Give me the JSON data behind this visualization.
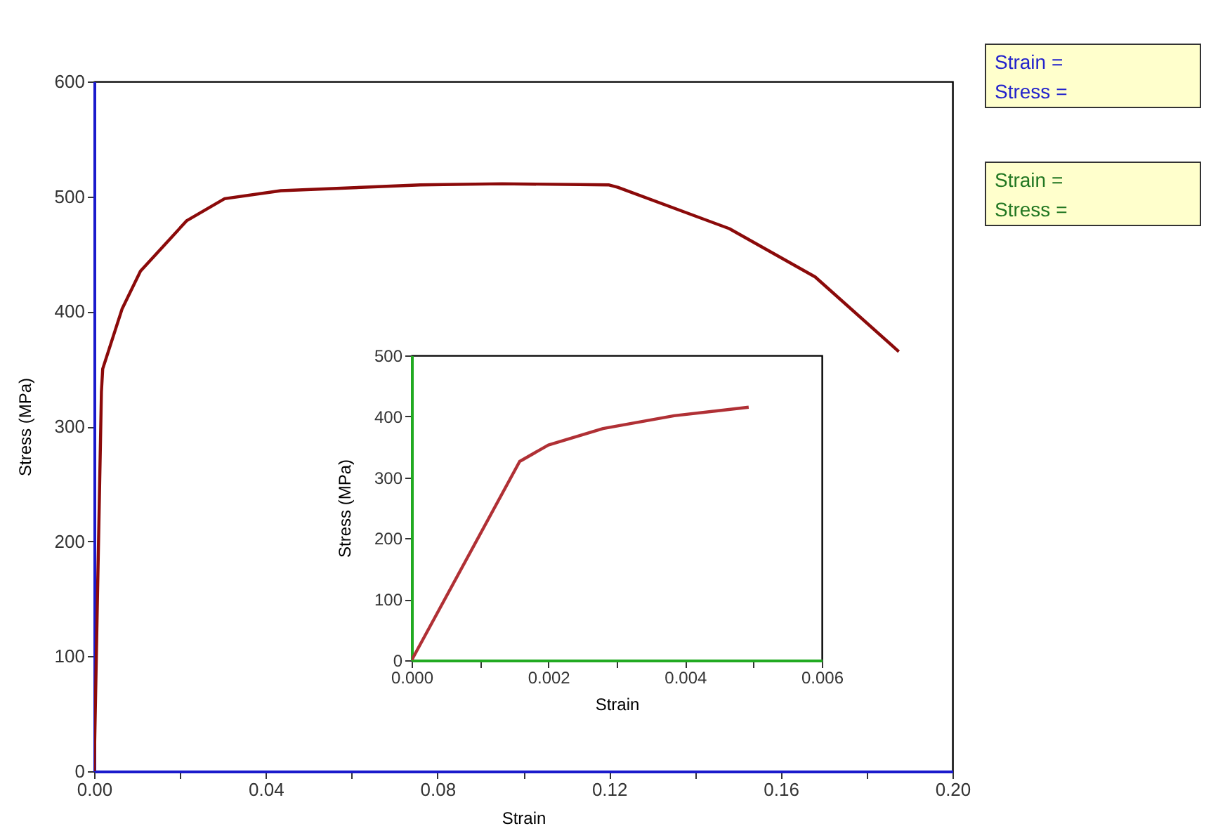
{
  "chart_data": [
    {
      "type": "line",
      "xlabel": "Strain",
      "ylabel": "Stress (MPa)",
      "xlim": [
        0,
        0.2
      ],
      "ylim": [
        0,
        600
      ],
      "xticks": [
        {
          "value": 0,
          "label": "0.00"
        },
        {
          "value": 0.02,
          "label": null
        },
        {
          "value": 0.04,
          "label": "0.04"
        },
        {
          "value": 0.06,
          "label": null
        },
        {
          "value": 0.08,
          "label": "0.08"
        },
        {
          "value": 0.1,
          "label": null
        },
        {
          "value": 0.12,
          "label": "0.12"
        },
        {
          "value": 0.14,
          "label": null
        },
        {
          "value": 0.16,
          "label": "0.16"
        },
        {
          "value": 0.18,
          "label": null
        },
        {
          "value": 0.2,
          "label": "0.20"
        }
      ],
      "yticks": [
        0,
        100,
        200,
        300,
        400,
        500,
        600
      ],
      "grid": false,
      "marker": "none",
      "line_style": "solid",
      "annotations": [
        "Strain =",
        "Stress ="
      ],
      "series": [
        {
          "color": "#8b0a0a",
          "x": [
            0,
            0.0017,
            0.002,
            0.0065,
            0.0108,
            0.0216,
            0.0304,
            0.0435,
            0.076,
            0.095,
            0.12,
            0.122,
            0.148,
            0.168,
            0.1875
          ],
          "values": [
            0,
            330,
            350,
            402,
            435,
            479,
            498,
            505,
            510,
            511,
            510,
            508,
            472,
            430,
            365
          ]
        }
      ]
    },
    {
      "type": "line",
      "xlabel": "Strain",
      "ylabel": "Stress (MPa)",
      "xlim": [
        0,
        0.006
      ],
      "ylim": [
        0,
        500
      ],
      "xticks": [
        {
          "value": 0,
          "label": "0.000"
        },
        {
          "value": 0.001,
          "label": null
        },
        {
          "value": 0.002,
          "label": "0.002"
        },
        {
          "value": 0.003,
          "label": null
        },
        {
          "value": 0.004,
          "label": "0.004"
        },
        {
          "value": 0.005,
          "label": null
        },
        {
          "value": 0.006,
          "label": "0.006"
        }
      ],
      "yticks": [
        0,
        100,
        200,
        300,
        400,
        500
      ],
      "grid": false,
      "marker": "none",
      "line_style": "solid",
      "annotations": [
        "Strain =",
        "Stress ="
      ],
      "series": [
        {
          "color": "#b03035",
          "x": [
            0,
            0.00158,
            0.002,
            0.0028,
            0.00384,
            0.00493
          ],
          "values": [
            0,
            326,
            353,
            380,
            401,
            415
          ]
        }
      ]
    }
  ]
}
